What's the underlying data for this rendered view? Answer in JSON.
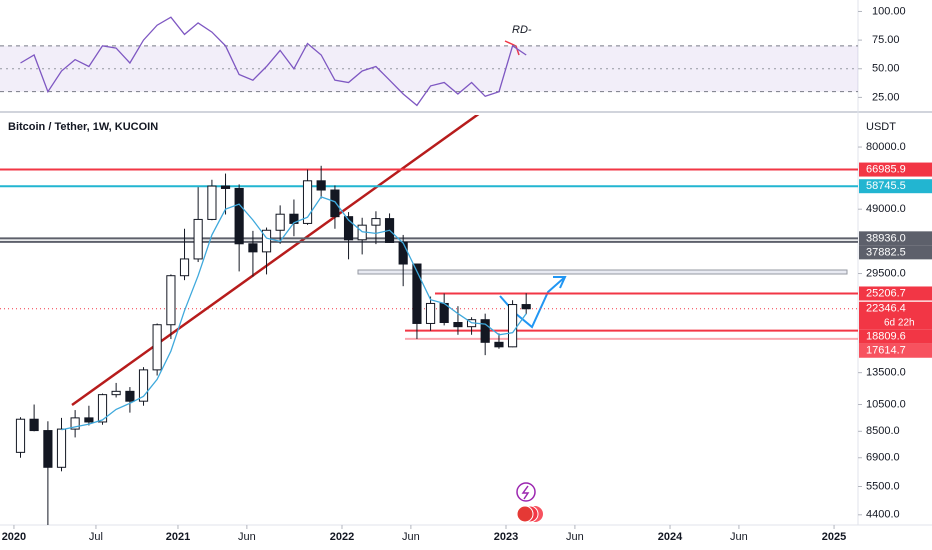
{
  "chart_data": {
    "type": "candlestick",
    "title": "Bitcoin / Tether, 1W, KUCOIN",
    "axis_unit": "USDT",
    "x": [
      2020.04,
      2020.123,
      2020.207,
      2020.29,
      2020.373,
      2020.457,
      2020.54,
      2020.623,
      2020.707,
      2020.79,
      2020.873,
      2020.957,
      2021.04,
      2021.123,
      2021.207,
      2021.29,
      2021.373,
      2021.457,
      2021.54,
      2021.623,
      2021.707,
      2021.79,
      2021.873,
      2021.957,
      2022.04,
      2022.123,
      2022.207,
      2022.29,
      2022.373,
      2022.457,
      2022.54,
      2022.623,
      2022.707,
      2022.79,
      2022.873,
      2022.957,
      2023.04,
      2023.123
    ],
    "open": [
      7200,
      9350,
      8550,
      6400,
      8650,
      9450,
      9150,
      11350,
      11650,
      10780,
      13800,
      19700,
      29000,
      33100,
      45200,
      58800,
      57700,
      37300,
      35000,
      41500,
      47100,
      43800,
      61300,
      57000,
      46200,
      38500,
      43200,
      45500,
      37700,
      31800,
      19900,
      23300,
      20050,
      19400,
      20500,
      17150,
      16550,
      23100
    ],
    "high": [
      9500,
      10500,
      9200,
      9450,
      10050,
      10400,
      11450,
      12450,
      12050,
      14100,
      19900,
      29300,
      42000,
      58300,
      61800,
      64900,
      59600,
      41300,
      42400,
      50500,
      52900,
      67000,
      69000,
      59100,
      47900,
      45800,
      48200,
      47400,
      40000,
      31900,
      24600,
      25200,
      22800,
      20900,
      21500,
      18400,
      23900,
      25250
    ],
    "low": [
      6900,
      8500,
      3850,
      6200,
      8100,
      8900,
      8950,
      11100,
      9850,
      10400,
      13200,
      17600,
      28000,
      32300,
      44900,
      47000,
      30000,
      28800,
      29300,
      37300,
      39600,
      43300,
      53300,
      42000,
      33000,
      34300,
      37200,
      37600,
      26700,
      17600,
      18800,
      19600,
      18200,
      18200,
      15500,
      16300,
      16500,
      21400
    ],
    "close": [
      9350,
      8550,
      6400,
      8650,
      9450,
      9150,
      11350,
      11650,
      10780,
      13800,
      19700,
      29000,
      33100,
      45200,
      58800,
      57700,
      37300,
      35000,
      41500,
      47100,
      43800,
      61300,
      57000,
      46200,
      38500,
      43200,
      45500,
      37700,
      31800,
      19900,
      23300,
      20050,
      19400,
      20500,
      17150,
      16550,
      23100,
      22346.4
    ],
    "candle_color": "#131722",
    "moving_average": {
      "color": "#3fa9dc",
      "values": [
        null,
        null,
        null,
        8600,
        8800,
        9000,
        9300,
        10100,
        10600,
        11200,
        12800,
        16000,
        22000,
        29000,
        40000,
        49000,
        51000,
        45000,
        39000,
        38000,
        44000,
        46000,
        54000,
        52000,
        45000,
        41000,
        40500,
        41500,
        37500,
        30000,
        24000,
        23300,
        21500,
        20000,
        19800,
        18200,
        18500,
        21500
      ]
    },
    "xlim": [
      2019.915,
      2025.146
    ],
    "xticks": [
      2020,
      {
        "value": 2020.5,
        "label": "Jul"
      },
      2021,
      {
        "value": 2021.42,
        "label": "Jun"
      },
      2022,
      {
        "value": 2022.42,
        "label": "Jun"
      },
      2023,
      {
        "value": 2023.42,
        "label": "Jun"
      },
      2024,
      {
        "value": 2024.42,
        "label": "Jun"
      },
      2025
    ],
    "log_scale": true,
    "ylim": [
      4060,
      103000
    ],
    "yticks": [
      {
        "value": 80000,
        "label": "80000.0"
      },
      {
        "value": 49000,
        "label": "49000.0"
      },
      {
        "value": 29500,
        "label": "29500.0"
      },
      {
        "value": 13500,
        "label": "13500.0"
      },
      {
        "value": 10500,
        "label": "10500.0"
      },
      {
        "value": 8500,
        "label": "8500.0"
      },
      {
        "value": 6900,
        "label": "6900.0"
      },
      {
        "value": 5500,
        "label": "5500.0"
      },
      {
        "value": 4400,
        "label": "4400.0"
      }
    ],
    "levels": [
      {
        "value": 66985.9,
        "color": "#f23645"
      },
      {
        "value": 58745.5,
        "color": "#22b5d1"
      },
      {
        "value": {
          "value": 38936,
          "label": "38936.0"
        },
        "color": "#5d606b"
      },
      {
        "value": 37882.5,
        "color": "#5d606b"
      },
      {
        "value": 25206.7,
        "color": "#f23645"
      },
      {
        "value": 22346.4,
        "color": "#f23645"
      },
      {
        "value": 18809.6,
        "color": "#f23645"
      },
      {
        "value": 17614.7,
        "color": "#f7525f"
      }
    ],
    "countdown": "6d 22h",
    "rsi": {
      "type": "line",
      "color": "#7e57c2",
      "values": [
        55,
        62,
        30,
        48,
        58,
        52,
        70,
        68,
        55,
        75,
        88,
        95,
        80,
        90,
        82,
        70,
        45,
        40,
        52,
        66,
        50,
        72,
        62,
        40,
        38,
        48,
        52,
        40,
        28,
        18,
        35,
        38,
        28,
        38,
        26,
        30,
        70,
        62
      ],
      "ylim": [
        14,
        110
      ],
      "yticks": [
        {
          "value": 100,
          "label": "100.00"
        },
        {
          "value": 75,
          "label": "75.00"
        },
        {
          "value": 50,
          "label": "50.00"
        },
        {
          "value": 25,
          "label": "25.00"
        }
      ],
      "band": [
        30,
        70
      ],
      "annotation": "RD-"
    }
  }
}
